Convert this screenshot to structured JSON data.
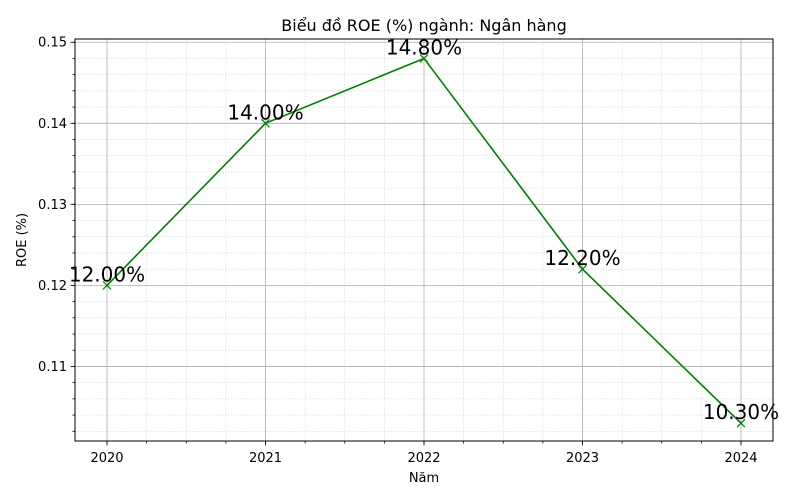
{
  "chart_data": {
    "type": "line",
    "title": "Biểu đồ ROE (%) ngành: Ngân hàng",
    "xlabel": "Năm",
    "ylabel": "ROE (%)",
    "categories": [
      "2020",
      "2021",
      "2022",
      "2023",
      "2024"
    ],
    "series": [
      {
        "values": [
          0.12,
          0.14,
          0.148,
          0.122,
          0.103
        ],
        "data_labels": [
          "12.00%",
          "14.00%",
          "14.80%",
          "12.20%",
          "10.30%"
        ],
        "color": "#008000",
        "marker": "x"
      }
    ],
    "ylim": [
      0.1008,
      0.1504
    ],
    "yticks": [
      0.11,
      0.12,
      0.13,
      0.14,
      0.15
    ],
    "ytick_labels": [
      "0.11",
      "0.12",
      "0.13",
      "0.14",
      "0.15"
    ],
    "grid": true,
    "minor_grid": true
  }
}
